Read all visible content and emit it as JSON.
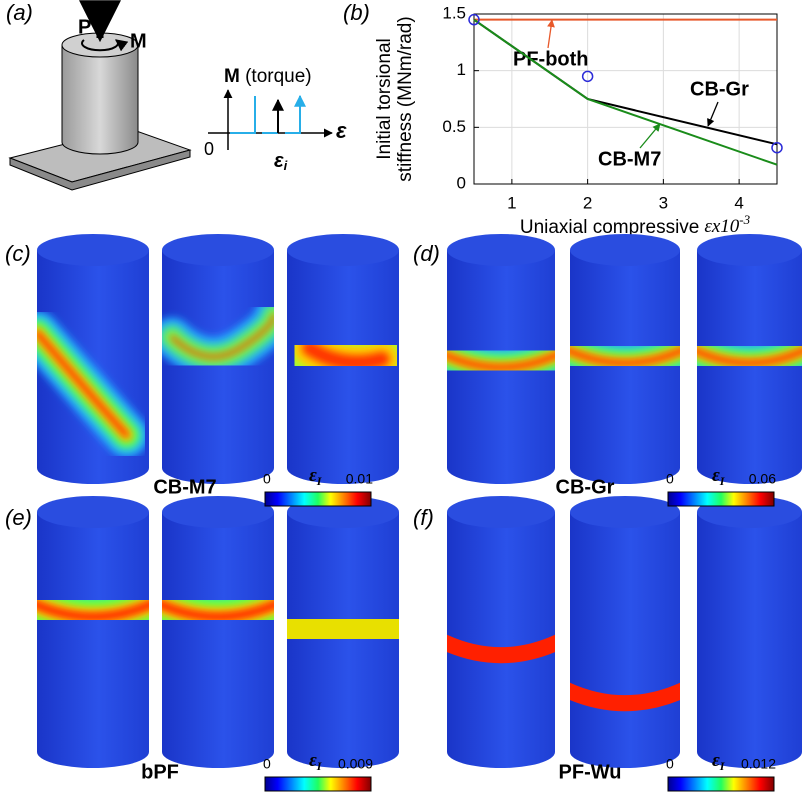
{
  "panels": {
    "a": {
      "label": "(a)",
      "force": "P",
      "moment": "M",
      "plot_ylabel_symbol": "M",
      "plot_ylabel": "(torque)",
      "origin": "0",
      "strain": "ε",
      "strain_i": "ε",
      "strain_i_sub": "i"
    },
    "b": {
      "label": "(b)"
    },
    "c": {
      "label": "(c)",
      "name": "CB-M7",
      "colorbar": {
        "min": 0,
        "symbol": "ε",
        "subscript": "I",
        "max": 0.01
      }
    },
    "d": {
      "label": "(d)",
      "name": "CB-Gr",
      "colorbar": {
        "min": 0,
        "symbol": "ε",
        "subscript": "I",
        "max": 0.06
      }
    },
    "e": {
      "label": "(e)",
      "name": "bPF",
      "colorbar": {
        "min": 0,
        "symbol": "ε",
        "subscript": "I",
        "max": 0.009
      }
    },
    "f": {
      "label": "(f)",
      "name": "PF-Wu",
      "colorbar": {
        "min": 0,
        "symbol": "ε",
        "subscript": "I",
        "max": 0.012
      }
    }
  },
  "chart_data": {
    "type": "line",
    "ylabel": [
      "Initial torsional",
      "stiffness (MNm/rad)"
    ],
    "xlabel": "Uniaxial compressive",
    "xlabel_symbol": "ε",
    "xlabel_scale": "x10",
    "xlabel_exponent": "-3",
    "x": [
      0.5,
      2,
      4.5
    ],
    "series": [
      {
        "name": "PF-both",
        "color": "#e8582a",
        "values": [
          1.45,
          1.45,
          1.45
        ]
      },
      {
        "name": "CB-Gr",
        "color": "#000000",
        "values": [
          1.45,
          0.75,
          0.35
        ]
      },
      {
        "name": "CB-M7",
        "color": "#1a8c1a",
        "values": [
          1.45,
          0.75,
          0.17
        ]
      },
      {
        "color": "#2b2bd8",
        "marker": "circle",
        "values": [
          1.45,
          0.95,
          0.32
        ]
      }
    ],
    "xlim": [
      0.5,
      4.5
    ],
    "xticks": [
      1,
      2,
      3,
      4
    ],
    "ylim": [
      0,
      1.5
    ],
    "yticks": [
      0,
      0.5,
      1,
      1.5
    ],
    "grid": true
  }
}
